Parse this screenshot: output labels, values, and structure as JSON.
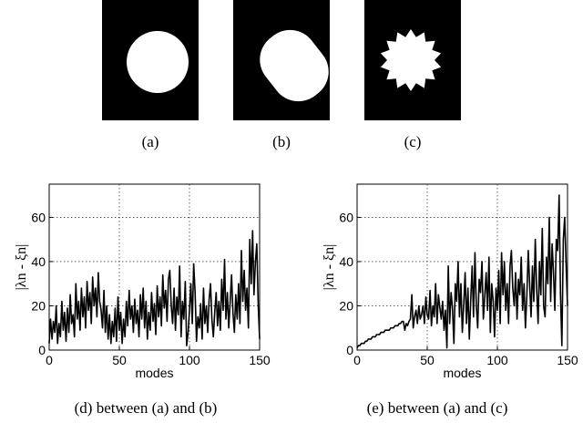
{
  "panels": [
    {
      "label": "(a)",
      "shape": "circle"
    },
    {
      "label": "(b)",
      "shape": "rounded-ellipse"
    },
    {
      "label": "(c)",
      "shape": "spiky-circle"
    }
  ],
  "colors": {
    "panel_bg": "#000000",
    "shape_fill": "#ffffff",
    "line": "#000000"
  },
  "chart_data": [
    {
      "type": "line",
      "caption": "(d) between (a) and (b)",
      "xlabel": "modes",
      "ylabel": "|λn - ξn|",
      "xlim": [
        0,
        150
      ],
      "ylim": [
        0,
        75
      ],
      "xticks": [
        0,
        50,
        100,
        150
      ],
      "yticks": [
        0,
        20,
        40,
        60
      ],
      "grid": "dotted",
      "series": [
        {
          "values": [
            3,
            14,
            5,
            13,
            8,
            20,
            3,
            12,
            6,
            22,
            9,
            17,
            4,
            19,
            8,
            25,
            12,
            16,
            6,
            30,
            14,
            22,
            9,
            28,
            15,
            24,
            10,
            31,
            18,
            26,
            12,
            33,
            20,
            28,
            15,
            35,
            22,
            18,
            10,
            27,
            8,
            20,
            5,
            16,
            3,
            13,
            6,
            19,
            4,
            24,
            9,
            17,
            3,
            14,
            6,
            22,
            11,
            27,
            14,
            20,
            8,
            23,
            12,
            18,
            6,
            25,
            14,
            28,
            10,
            22,
            5,
            17,
            9,
            26,
            13,
            21,
            7,
            29,
            15,
            24,
            11,
            34,
            19,
            27,
            13,
            32,
            36,
            20,
            12,
            28,
            9,
            24,
            16,
            38,
            6,
            22,
            14,
            31,
            2,
            8,
            18,
            30,
            12,
            39,
            26,
            4,
            15,
            10,
            21,
            5,
            28,
            12,
            20,
            8,
            23,
            30,
            14,
            6,
            17,
            26,
            11,
            22,
            9,
            32,
            18,
            41,
            14,
            26,
            10,
            22,
            34,
            17,
            8,
            25,
            14,
            30,
            12,
            45,
            22,
            36,
            18,
            28,
            10,
            50,
            30,
            54,
            25,
            40,
            48,
            20,
            5
          ]
        }
      ]
    },
    {
      "type": "line",
      "caption": "(e) between (a) and (c)",
      "xlabel": "modes",
      "ylabel": "|λn - ξn|",
      "xlim": [
        0,
        150
      ],
      "ylim": [
        0,
        75
      ],
      "xticks": [
        0,
        50,
        100,
        150
      ],
      "yticks": [
        0,
        20,
        40,
        60
      ],
      "grid": "dotted",
      "series": [
        {
          "values": [
            1,
            2,
            2,
            3,
            3,
            3,
            4,
            4,
            5,
            5,
            5,
            6,
            6,
            6,
            7,
            7,
            7,
            8,
            8,
            8,
            9,
            9,
            9,
            9,
            10,
            10,
            10,
            11,
            11,
            11,
            12,
            12,
            13,
            13,
            9,
            12,
            11,
            13,
            14,
            25,
            10,
            15,
            18,
            12,
            20,
            14,
            16,
            20,
            12,
            24,
            16,
            14,
            27,
            11,
            20,
            15,
            30,
            12,
            25,
            19,
            14,
            22,
            9,
            18,
            1,
            38,
            12,
            26,
            19,
            3,
            30,
            22,
            40,
            15,
            30,
            8,
            20,
            35,
            12,
            28,
            5,
            22,
            38,
            15,
            44,
            20,
            10,
            32,
            26,
            40,
            14,
            24,
            35,
            18,
            42,
            8,
            30,
            22,
            6,
            28,
            18,
            36,
            12,
            44,
            25,
            40,
            18,
            30,
            12,
            38,
            45,
            28,
            20,
            35,
            14,
            32,
            25,
            42,
            18,
            30,
            10,
            24,
            45,
            30,
            15,
            38,
            22,
            50,
            28,
            12,
            40,
            25,
            55,
            20,
            15,
            42,
            30,
            60,
            22,
            48,
            35,
            18,
            50,
            45,
            70,
            25,
            2,
            50,
            60,
            38,
            20
          ]
        }
      ]
    }
  ]
}
